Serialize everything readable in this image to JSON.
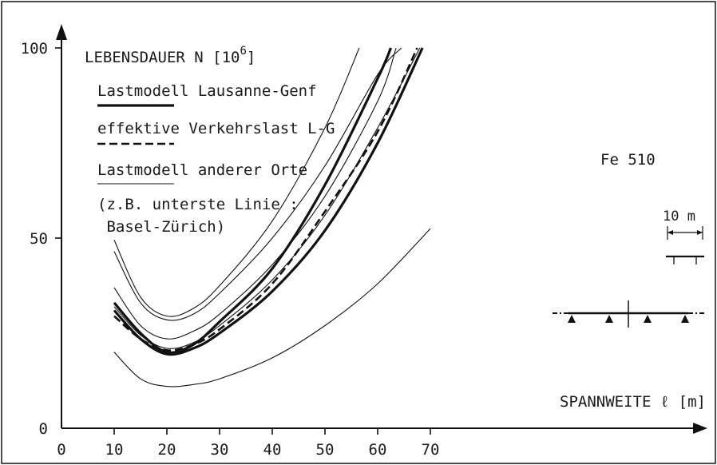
{
  "chart_data": {
    "type": "line",
    "ylabel": "LEBENSDAUER  N  [10",
    "ylabel_exp": "6",
    "ylabel_close": "]",
    "xlabel": "SPANNWEITE  ℓ  [m]",
    "xlim": [
      0,
      80
    ],
    "ylim": [
      0,
      100
    ],
    "x_ticks": [
      "0",
      "10",
      "20",
      "30",
      "40",
      "50",
      "60",
      "70"
    ],
    "y_ticks": [
      "0",
      "50",
      "100"
    ],
    "grid": false,
    "legend": [
      {
        "label": "Lastmodell Lausanne-Genf",
        "style": "thick-solid"
      },
      {
        "label": "effektive Verkehrslast L-G",
        "style": "dashed"
      },
      {
        "label": "Lastmodell anderer Orte",
        "style": "thin-solid"
      }
    ],
    "legend_note": [
      "(z.B. unterste Linie :",
      " Basel-Zürich)"
    ],
    "annotation": "Fe 510",
    "scale_label": "10 m",
    "series": [
      {
        "style": "thin",
        "x": [
          10,
          15,
          20,
          25,
          30,
          40,
          50,
          56.5
        ],
        "y": [
          49.5,
          34.5,
          29.5,
          31.5,
          37.5,
          54.5,
          79,
          100
        ]
      },
      {
        "style": "thin",
        "x": [
          10,
          15,
          20,
          25,
          30,
          40,
          50,
          60,
          64.5
        ],
        "y": [
          46.5,
          33,
          28.5,
          30,
          35.5,
          50,
          69,
          93,
          100
        ]
      },
      {
        "style": "thin",
        "x": [
          10,
          15,
          20,
          25,
          30,
          40,
          50,
          60,
          63.5
        ],
        "y": [
          37,
          27,
          23.5,
          25.5,
          30,
          43,
          61,
          86,
          100
        ]
      },
      {
        "style": "thin",
        "x": [
          10,
          15,
          20,
          25,
          30,
          40,
          50,
          60,
          68
        ],
        "y": [
          32,
          24.5,
          21,
          22.5,
          27,
          39,
          56,
          79,
          100
        ]
      },
      {
        "style": "thick",
        "x": [
          10,
          15,
          20,
          25,
          30,
          40,
          50,
          60,
          62.5
        ],
        "y": [
          33,
          25,
          20,
          22,
          28,
          42,
          64,
          92,
          100
        ]
      },
      {
        "style": "dashed",
        "x": [
          10,
          15,
          20,
          25,
          30,
          40,
          50,
          60,
          67.5
        ],
        "y": [
          29.5,
          23.5,
          20.5,
          22,
          26,
          38,
          57,
          78,
          100
        ]
      },
      {
        "style": "thick",
        "x": [
          10,
          15,
          20,
          25,
          30,
          40,
          50,
          60,
          68.5
        ],
        "y": [
          31,
          23.5,
          19.5,
          21,
          25,
          36,
          52,
          75,
          100
        ]
      },
      {
        "style": "thin",
        "x": [
          10,
          15,
          20,
          25,
          30,
          40,
          50,
          60,
          70
        ],
        "y": [
          20,
          13,
          11,
          11.5,
          13,
          18.5,
          27,
          38,
          52.5
        ]
      }
    ]
  }
}
